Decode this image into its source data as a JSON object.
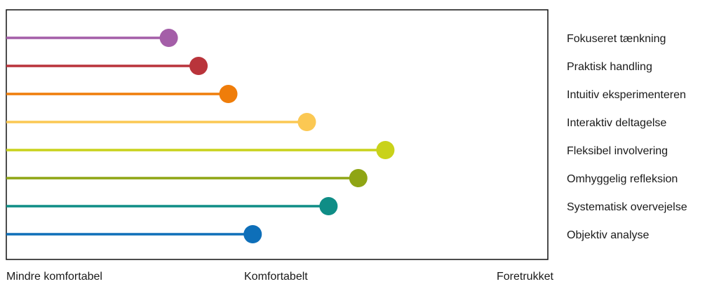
{
  "chart_data": {
    "type": "lollipop",
    "orientation": "horizontal",
    "x_tick_labels": [
      "Mindre komfortabel",
      "Komfortabelt",
      "Foretrukket"
    ],
    "x_range": [
      0,
      1
    ],
    "grid": false,
    "legend_placement": "right",
    "series": [
      {
        "name": "Fokuseret tænkning",
        "value": 0.3,
        "color": "#a45ea8"
      },
      {
        "name": "Praktisk handling",
        "value": 0.355,
        "color": "#b9343b"
      },
      {
        "name": "Intuitiv eksperimenteren",
        "value": 0.41,
        "color": "#ef7d0a"
      },
      {
        "name": "Interaktiv deltagelse",
        "value": 0.555,
        "color": "#fbc853"
      },
      {
        "name": "Fleksibel involvering",
        "value": 0.7,
        "color": "#c9d21a"
      },
      {
        "name": "Omhyggelig refleksion",
        "value": 0.65,
        "color": "#8fa514"
      },
      {
        "name": "Systematisk overvejelse",
        "value": 0.595,
        "color": "#0f8d86"
      },
      {
        "name": "Objektiv analyse",
        "value": 0.455,
        "color": "#0e6fb9"
      }
    ]
  }
}
